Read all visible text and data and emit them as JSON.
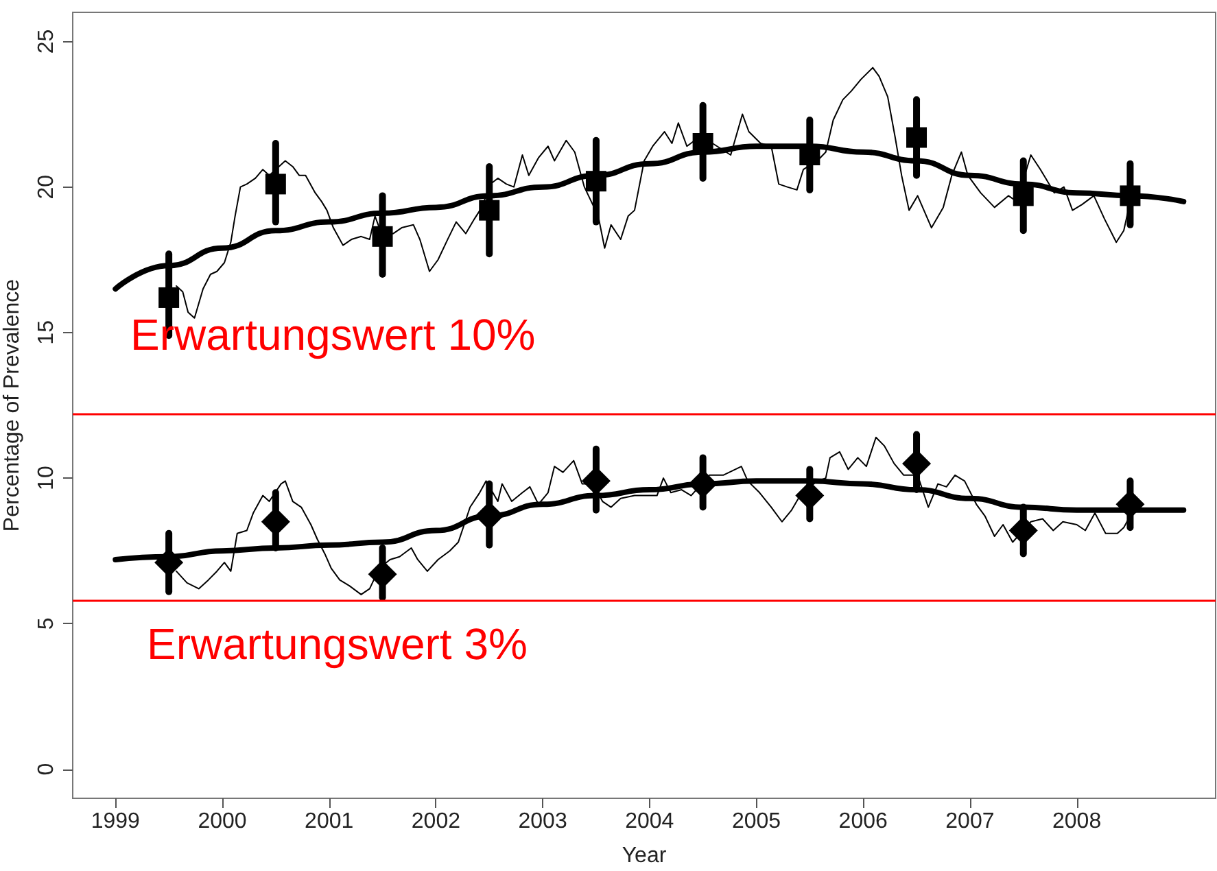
{
  "chart_data": {
    "type": "line",
    "xlabel": "Year",
    "ylabel": "Percentage of Prevalence",
    "xlim": [
      1998.6,
      2009.3
    ],
    "xticks": [
      1999,
      2000,
      2001,
      2002,
      2003,
      2004,
      2005,
      2006,
      2007,
      2008
    ],
    "ylim": [
      -1,
      26
    ],
    "yticks": [
      0,
      5,
      10,
      15,
      20,
      25
    ],
    "marker": "none",
    "line_style": "solid",
    "series": [
      {
        "color": "#000000",
        "x": [
          1999.57,
          1999.63,
          1999.68,
          1999.74,
          1999.78,
          1999.82,
          1999.89,
          1999.95,
          2000.02,
          2000.08,
          2000.12,
          2000.17,
          2000.23,
          2000.31,
          2000.38,
          2000.44,
          2000.59,
          2000.66,
          2000.72,
          2000.78,
          2000.87,
          2000.93,
          2000.98,
          2001.04,
          2001.13,
          2001.21,
          2001.3,
          2001.38,
          2001.43,
          2001.5,
          2001.6,
          2001.68,
          2001.79,
          2001.85,
          2001.94,
          2002.02,
          2002.11,
          2002.19,
          2002.28,
          2002.36,
          2002.43,
          2002.51,
          2002.58,
          2002.66,
          2002.73,
          2002.81,
          2002.87,
          2002.96,
          2003.05,
          2003.11,
          2003.22,
          2003.3,
          2003.39,
          2003.52,
          2003.58,
          2003.64,
          2003.73,
          2003.8,
          2003.86,
          2003.95,
          2004.03,
          2004.14,
          2004.21,
          2004.27,
          2004.35,
          2004.46,
          2004.59,
          2004.76,
          2004.87,
          2004.93,
          2005.04,
          2005.14,
          2005.21,
          2005.29,
          2005.38,
          2005.44,
          2005.57,
          2005.65,
          2005.72,
          2005.81,
          2005.89,
          2005.98,
          2006.09,
          2006.15,
          2006.23,
          2006.3,
          2006.36,
          2006.43,
          2006.51,
          2006.64,
          2006.75,
          2006.83,
          2006.92,
          2006.98,
          2007.1,
          2007.23,
          2007.36,
          2007.44,
          2007.57,
          2007.66,
          2007.79,
          2007.88,
          2007.96,
          2008.05,
          2008.16,
          2008.26,
          2008.37,
          2008.44,
          2008.5
        ],
        "values": [
          16.6,
          16.4,
          15.7,
          15.5,
          16.0,
          16.5,
          17.0,
          17.1,
          17.4,
          18.1,
          19.0,
          20.0,
          20.1,
          20.3,
          20.6,
          20.4,
          20.9,
          20.7,
          20.4,
          20.4,
          19.8,
          19.5,
          19.2,
          18.6,
          18.0,
          18.2,
          18.3,
          18.2,
          19.0,
          18.3,
          18.4,
          18.6,
          18.7,
          18.2,
          17.1,
          17.5,
          18.2,
          18.8,
          18.4,
          18.9,
          19.3,
          20.1,
          20.3,
          20.1,
          20.0,
          21.1,
          20.4,
          21.0,
          21.4,
          20.9,
          21.6,
          21.2,
          20.0,
          19.0,
          17.9,
          18.7,
          18.2,
          19.0,
          19.2,
          20.9,
          21.4,
          21.9,
          21.5,
          22.2,
          21.4,
          21.7,
          21.5,
          21.1,
          22.5,
          21.9,
          21.5,
          21.4,
          20.1,
          20.0,
          19.9,
          20.6,
          20.9,
          21.2,
          22.3,
          23.0,
          23.3,
          23.7,
          24.1,
          23.8,
          23.1,
          21.7,
          20.4,
          19.2,
          19.7,
          18.6,
          19.3,
          20.4,
          21.2,
          20.4,
          19.8,
          19.3,
          19.7,
          19.5,
          21.1,
          20.6,
          19.8,
          20.0,
          19.2,
          19.4,
          19.7,
          18.9,
          18.1,
          18.5,
          19.5
        ]
      },
      {
        "color": "#000000",
        "x": [
          1999.57,
          1999.67,
          1999.78,
          1999.87,
          1999.95,
          2000.02,
          2000.08,
          2000.14,
          2000.23,
          2000.29,
          2000.38,
          2000.44,
          2000.55,
          2000.59,
          2000.66,
          2000.74,
          2000.83,
          2000.89,
          2000.96,
          2001.02,
          2001.1,
          2001.19,
          2001.3,
          2001.38,
          2001.47,
          2001.57,
          2001.66,
          2001.77,
          2001.83,
          2001.92,
          2002.02,
          2002.13,
          2002.21,
          2002.32,
          2002.41,
          2002.47,
          2002.58,
          2002.62,
          2002.71,
          2002.81,
          2002.88,
          2002.96,
          2003.05,
          2003.11,
          2003.19,
          2003.29,
          2003.37,
          2003.47,
          2003.56,
          2003.64,
          2003.73,
          2003.86,
          2003.99,
          2004.07,
          2004.13,
          2004.2,
          2004.3,
          2004.39,
          2004.56,
          2004.69,
          2004.86,
          2004.92,
          2005.03,
          2005.14,
          2005.24,
          2005.33,
          2005.41,
          2005.57,
          2005.65,
          2005.69,
          2005.78,
          2005.86,
          2005.95,
          2006.03,
          2006.12,
          2006.2,
          2006.29,
          2006.38,
          2006.51,
          2006.61,
          2006.7,
          2006.78,
          2006.86,
          2006.95,
          2007.06,
          2007.14,
          2007.23,
          2007.31,
          2007.4,
          2007.57,
          2007.68,
          2007.78,
          2007.87,
          2008.0,
          2008.08,
          2008.17,
          2008.27,
          2008.38,
          2008.44,
          2008.5
        ],
        "values": [
          6.8,
          6.4,
          6.2,
          6.5,
          6.8,
          7.1,
          6.8,
          8.1,
          8.2,
          8.8,
          9.4,
          9.2,
          9.8,
          9.9,
          9.2,
          9.0,
          8.4,
          7.9,
          7.4,
          6.9,
          6.5,
          6.3,
          6.0,
          6.2,
          6.9,
          7.2,
          7.3,
          7.6,
          7.2,
          6.8,
          7.2,
          7.5,
          7.8,
          9.0,
          9.5,
          9.9,
          9.2,
          9.8,
          9.2,
          9.5,
          9.7,
          9.1,
          9.5,
          10.4,
          10.2,
          10.6,
          9.8,
          9.8,
          9.2,
          9.0,
          9.3,
          9.4,
          9.4,
          9.4,
          10.0,
          9.5,
          9.6,
          9.4,
          10.1,
          10.1,
          10.4,
          9.9,
          9.5,
          9.0,
          8.5,
          8.9,
          9.4,
          9.9,
          10.0,
          10.7,
          10.9,
          10.3,
          10.7,
          10.4,
          11.4,
          11.1,
          10.5,
          10.1,
          10.1,
          9.0,
          9.8,
          9.7,
          10.1,
          9.9,
          9.1,
          8.7,
          8.0,
          8.4,
          7.8,
          8.5,
          8.6,
          8.2,
          8.5,
          8.4,
          8.2,
          8.8,
          8.1,
          8.1,
          8.3,
          8.7
        ]
      },
      {
        "color": "#000000",
        "x": [
          1999,
          1999.5,
          2000,
          2000.5,
          2001,
          2001.5,
          2002,
          2002.5,
          2003,
          2003.5,
          2004,
          2004.5,
          2005,
          2005.5,
          2006,
          2006.5,
          2007,
          2007.5,
          2008,
          2008.5,
          2009
        ],
        "values": [
          16.5,
          17.3,
          17.9,
          18.5,
          18.8,
          19.1,
          19.3,
          19.7,
          20.0,
          20.4,
          20.8,
          21.2,
          21.4,
          21.4,
          21.2,
          20.9,
          20.4,
          20.1,
          19.8,
          19.7,
          19.5
        ]
      },
      {
        "color": "#000000",
        "x": [
          1999,
          1999.5,
          2000,
          2000.5,
          2001,
          2001.5,
          2002,
          2002.5,
          2003,
          2003.5,
          2004,
          2004.5,
          2005,
          2005.5,
          2006,
          2006.5,
          2007,
          2007.5,
          2008,
          2008.5,
          2009
        ],
        "values": [
          7.2,
          7.3,
          7.5,
          7.6,
          7.7,
          7.8,
          8.2,
          8.7,
          9.1,
          9.4,
          9.6,
          9.8,
          9.9,
          9.9,
          9.8,
          9.6,
          9.3,
          9.0,
          8.9,
          8.9,
          8.9
        ]
      },
      {
        "type": "scatter",
        "marker": "square",
        "color": "#000000",
        "x": [
          1999.5,
          2000.5,
          2001.5,
          2002.5,
          2003.5,
          2004.5,
          2005.5,
          2006.5,
          2007.5,
          2008.5
        ],
        "values": [
          16.2,
          20.1,
          18.3,
          19.2,
          20.2,
          21.5,
          21.1,
          21.7,
          19.7,
          19.7
        ],
        "errors": [
          [
            14.9,
            17.7
          ],
          [
            18.8,
            21.5
          ],
          [
            17.0,
            19.7
          ],
          [
            17.7,
            20.7
          ],
          [
            18.8,
            21.6
          ],
          [
            20.3,
            22.8
          ],
          [
            19.9,
            22.3
          ],
          [
            20.4,
            23.0
          ],
          [
            18.5,
            20.9
          ],
          [
            18.7,
            20.8
          ]
        ]
      },
      {
        "type": "scatter",
        "marker": "diamond",
        "color": "#000000",
        "x": [
          1999.5,
          2000.5,
          2001.5,
          2002.5,
          2003.5,
          2004.5,
          2005.5,
          2006.5,
          2007.5,
          2008.5
        ],
        "values": [
          7.1,
          8.5,
          6.7,
          8.7,
          9.9,
          9.8,
          9.4,
          10.5,
          8.2,
          9.1
        ],
        "errors": [
          [
            6.1,
            8.1
          ],
          [
            7.6,
            9.5
          ],
          [
            5.9,
            7.6
          ],
          [
            7.7,
            9.8
          ],
          [
            8.9,
            11.0
          ],
          [
            9.0,
            10.7
          ],
          [
            8.6,
            10.3
          ],
          [
            9.6,
            11.5
          ],
          [
            7.4,
            9.0
          ],
          [
            8.3,
            9.9
          ]
        ]
      }
    ],
    "ref_lines": [
      {
        "axis": "y",
        "value": 12.2,
        "color": "#ff0000",
        "label": "Erwartungswert 10%"
      },
      {
        "axis": "y",
        "value": 5.8,
        "color": "#ff0000",
        "label": "Erwartungswert 3%"
      }
    ]
  }
}
